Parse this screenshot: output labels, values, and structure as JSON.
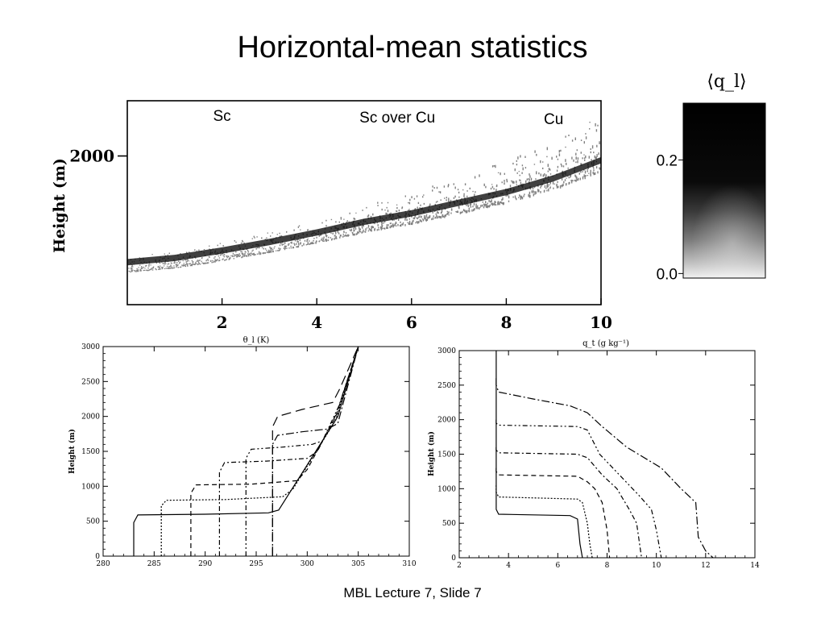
{
  "slide": {
    "title": "Horizontal-mean statistics",
    "footer": "MBL Lecture 7, Slide 7"
  },
  "chart_data": [
    {
      "type": "scatter",
      "title": "",
      "ylabel": "Height (m)",
      "xticks": [
        2,
        4,
        6,
        8,
        10
      ],
      "yticks": [
        2000
      ],
      "xlim": [
        0,
        10
      ],
      "ylim": [
        600,
        2520
      ],
      "grid": false,
      "annotations": [
        {
          "text": "Sc",
          "x": 2.0,
          "y": 2330
        },
        {
          "text": "Sc over Cu",
          "x": 5.7,
          "y": 2315
        },
        {
          "text": "Cu",
          "x": 9.0,
          "y": 2300
        }
      ],
      "cloud_base": {
        "x": [
          0,
          1,
          2,
          3,
          4,
          5,
          6,
          7,
          8,
          9,
          10
        ],
        "y": [
          1000,
          1040,
          1110,
          1190,
          1280,
          1380,
          1460,
          1560,
          1660,
          1790,
          1960
        ]
      }
    },
    {
      "type": "heatmap",
      "title": "⟨q_l⟩",
      "yticks": [
        0.0,
        0.2
      ],
      "ylim": [
        -0.008,
        0.3
      ]
    },
    {
      "type": "line",
      "title": "θ_l (K)",
      "ylabel": "Height (m)",
      "xlim": [
        280,
        310
      ],
      "ylim": [
        0,
        3000
      ],
      "xticks": [
        280,
        285,
        290,
        295,
        300,
        305,
        310
      ],
      "yticks": [
        0,
        500,
        1000,
        1500,
        2000,
        2500,
        3000
      ],
      "series": [
        {
          "x": [
            283,
            283,
            283.4,
            290,
            296.2,
            297.2,
            303,
            305
          ],
          "y": [
            0,
            480,
            590,
            600,
            620,
            660,
            2000,
            3000
          ]
        },
        {
          "x": [
            285.7,
            285.7,
            286.2,
            292,
            297.6,
            298.6,
            302.8,
            305
          ],
          "y": [
            0,
            720,
            800,
            810,
            850,
            960,
            1950,
            3000
          ]
        },
        {
          "x": [
            288.6,
            288.6,
            289.1,
            294.5,
            299,
            300,
            302.8,
            305
          ],
          "y": [
            0,
            900,
            1020,
            1030,
            1080,
            1240,
            2000,
            3000
          ]
        },
        {
          "x": [
            291.4,
            291.4,
            291.9,
            296,
            300,
            301,
            302.9,
            305
          ],
          "y": [
            0,
            1200,
            1340,
            1360,
            1400,
            1500,
            2050,
            3000
          ]
        },
        {
          "x": [
            294,
            294,
            294.5,
            297.5,
            300.5,
            301.5,
            303.1,
            305
          ],
          "y": [
            0,
            1400,
            1530,
            1560,
            1600,
            1650,
            2150,
            3000
          ]
        },
        {
          "x": [
            296.6,
            296.6,
            297.1,
            299.5,
            302,
            303,
            305
          ],
          "y": [
            0,
            1600,
            1730,
            1780,
            1820,
            1900,
            3000
          ]
        },
        {
          "x": [
            296.6,
            296.6,
            297.1,
            299.5,
            302.5,
            303.2,
            305
          ],
          "y": [
            0,
            1850,
            2000,
            2100,
            2200,
            2400,
            3000
          ]
        }
      ]
    },
    {
      "type": "line",
      "title": "q_t (g kg⁻¹)",
      "ylabel": "Height (m)",
      "xlim": [
        2,
        14
      ],
      "ylim": [
        0,
        3000
      ],
      "xticks": [
        2,
        4,
        6,
        8,
        10,
        12,
        14
      ],
      "yticks": [
        0,
        500,
        1000,
        1500,
        2000,
        2500,
        3000
      ],
      "series": [
        {
          "x": [
            3.5,
            3.5,
            3.6,
            6.5,
            6.8,
            6.9,
            7.0
          ],
          "y": [
            3000,
            700,
            630,
            610,
            560,
            200,
            0
          ]
        },
        {
          "x": [
            3.5,
            3.5,
            3.6,
            6.8,
            7.0,
            7.2,
            7.3,
            7.4
          ],
          "y": [
            1050,
            950,
            880,
            850,
            800,
            500,
            200,
            0
          ]
        },
        {
          "x": [
            3.5,
            3.5,
            3.6,
            6.8,
            7.2,
            7.5,
            7.8,
            8.0,
            8.1
          ],
          "y": [
            1300,
            1250,
            1200,
            1180,
            1100,
            1000,
            800,
            400,
            0
          ]
        },
        {
          "x": [
            3.5,
            3.5,
            3.6,
            6.8,
            7.2,
            7.8,
            8.4,
            8.9,
            9.2,
            9.4
          ],
          "y": [
            1600,
            1560,
            1520,
            1500,
            1450,
            1200,
            1000,
            700,
            500,
            0
          ]
        },
        {
          "x": [
            3.5,
            3.5,
            3.6,
            6.8,
            7.2,
            7.7,
            8.5,
            9.3,
            9.8,
            10.0,
            10.2
          ],
          "y": [
            2000,
            1950,
            1920,
            1900,
            1850,
            1500,
            1200,
            900,
            700,
            400,
            0
          ]
        },
        {
          "x": [
            3.5,
            3.5,
            3.6,
            5.0,
            6.5,
            7.2,
            7.8,
            8.8,
            10.2,
            11.0,
            11.6,
            11.7,
            12.0,
            12.3
          ],
          "y": [
            2600,
            2500,
            2400,
            2300,
            2200,
            2100,
            1900,
            1600,
            1300,
            1000,
            800,
            300,
            100,
            0
          ]
        }
      ]
    }
  ]
}
